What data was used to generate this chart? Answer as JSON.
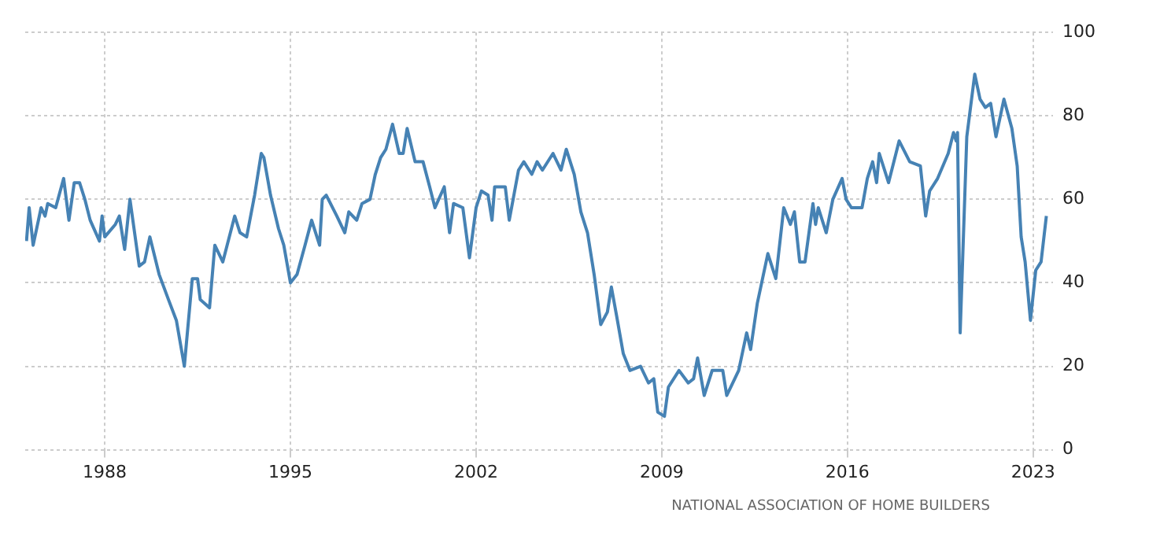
{
  "chart_data": {
    "type": "line",
    "x": [
      1985.05,
      1985.15,
      1985.3,
      1985.6,
      1985.75,
      1985.85,
      1986.15,
      1986.45,
      1986.65,
      1986.85,
      1987.05,
      1987.25,
      1987.45,
      1987.8,
      1987.9,
      1988.0,
      1988.4,
      1988.55,
      1988.75,
      1988.95,
      1989.3,
      1989.5,
      1989.7,
      1990.05,
      1990.4,
      1990.7,
      1991.0,
      1991.3,
      1991.5,
      1991.6,
      1991.95,
      1992.15,
      1992.45,
      1992.9,
      1993.1,
      1993.35,
      1993.65,
      1993.9,
      1994.0,
      1994.25,
      1994.55,
      1994.75,
      1995.0,
      1995.25,
      1995.55,
      1995.8,
      1995.95,
      1996.1,
      1996.2,
      1996.35,
      1996.75,
      1997.05,
      1997.2,
      1997.5,
      1997.7,
      1998.0,
      1998.2,
      1998.4,
      1998.6,
      1998.85,
      1999.1,
      1999.25,
      1999.4,
      1999.7,
      2000.0,
      2000.25,
      2000.45,
      2000.8,
      2001.0,
      2001.15,
      2001.5,
      2001.75,
      2002.0,
      2002.2,
      2002.45,
      2002.6,
      2002.7,
      2003.1,
      2003.25,
      2003.6,
      2003.8,
      2004.1,
      2004.3,
      2004.5,
      2004.9,
      2005.2,
      2005.4,
      2005.7,
      2005.95,
      2006.2,
      2006.45,
      2006.7,
      2006.95,
      2007.1,
      2007.3,
      2007.55,
      2007.8,
      2008.2,
      2008.5,
      2008.7,
      2008.85,
      2009.1,
      2009.25,
      2009.65,
      2010.0,
      2010.2,
      2010.35,
      2010.6,
      2010.9,
      2011.3,
      2011.45,
      2011.6,
      2011.9,
      2012.2,
      2012.35,
      2012.6,
      2012.8,
      2013.0,
      2013.3,
      2013.6,
      2013.85,
      2014.0,
      2014.2,
      2014.4,
      2014.7,
      2014.8,
      2014.9,
      2015.2,
      2015.45,
      2015.8,
      2015.95,
      2016.15,
      2016.55,
      2016.75,
      2016.95,
      2017.1,
      2017.2,
      2017.55,
      2017.95,
      2018.35,
      2018.75,
      2018.95,
      2019.1,
      2019.4,
      2019.8,
      2020.0,
      2020.1,
      2020.15,
      2020.25,
      2020.5,
      2020.8,
      2021.0,
      2021.2,
      2021.4,
      2021.6,
      2021.9,
      2022.2,
      2022.4,
      2022.55,
      2022.7,
      2022.9,
      2023.1,
      2023.3,
      2023.5
    ],
    "series": [
      {
        "color": "#4682b4",
        "values": [
          50,
          58,
          49,
          58,
          56,
          59,
          58,
          65,
          55,
          64,
          64,
          60,
          55,
          50,
          56,
          51,
          54,
          56,
          48,
          60,
          44,
          45,
          51,
          42,
          36,
          31,
          20,
          41,
          41,
          36,
          34,
          49,
          45,
          56,
          52,
          51,
          61,
          71,
          70,
          61,
          53,
          49,
          40,
          42,
          49,
          55,
          52,
          49,
          60,
          61,
          56,
          52,
          57,
          55,
          59,
          60,
          66,
          70,
          72,
          78,
          71,
          71,
          77,
          69,
          69,
          63,
          58,
          63,
          52,
          59,
          58,
          46,
          58,
          62,
          61,
          55,
          63,
          63,
          55,
          67,
          69,
          66,
          69,
          67,
          71,
          67,
          72,
          66,
          57,
          52,
          42,
          30,
          33,
          39,
          32,
          23,
          19,
          20,
          16,
          17,
          9,
          8,
          15,
          19,
          16,
          17,
          22,
          13,
          19,
          19,
          13,
          15,
          19,
          28,
          24,
          35,
          41,
          47,
          41,
          58,
          54,
          57,
          45,
          45,
          59,
          54,
          58,
          52,
          60,
          65,
          60,
          58,
          58,
          65,
          69,
          64,
          71,
          64,
          74,
          69,
          68,
          56,
          62,
          65,
          71,
          76,
          74,
          76,
          28,
          75,
          90,
          84,
          82,
          83,
          75,
          84,
          77,
          68,
          51,
          45,
          31,
          43,
          45,
          56
        ]
      }
    ],
    "xlim": [
      1985,
      2023.75
    ],
    "xticks": [
      1988,
      1995,
      2002,
      2009,
      2016,
      2023
    ],
    "ylim": [
      0,
      100
    ],
    "yticks": [
      0,
      20,
      40,
      60,
      80,
      100
    ],
    "grid": true,
    "annotations": [
      "NATIONAL ASSOCIATION OF HOME BUILDERS"
    ]
  }
}
